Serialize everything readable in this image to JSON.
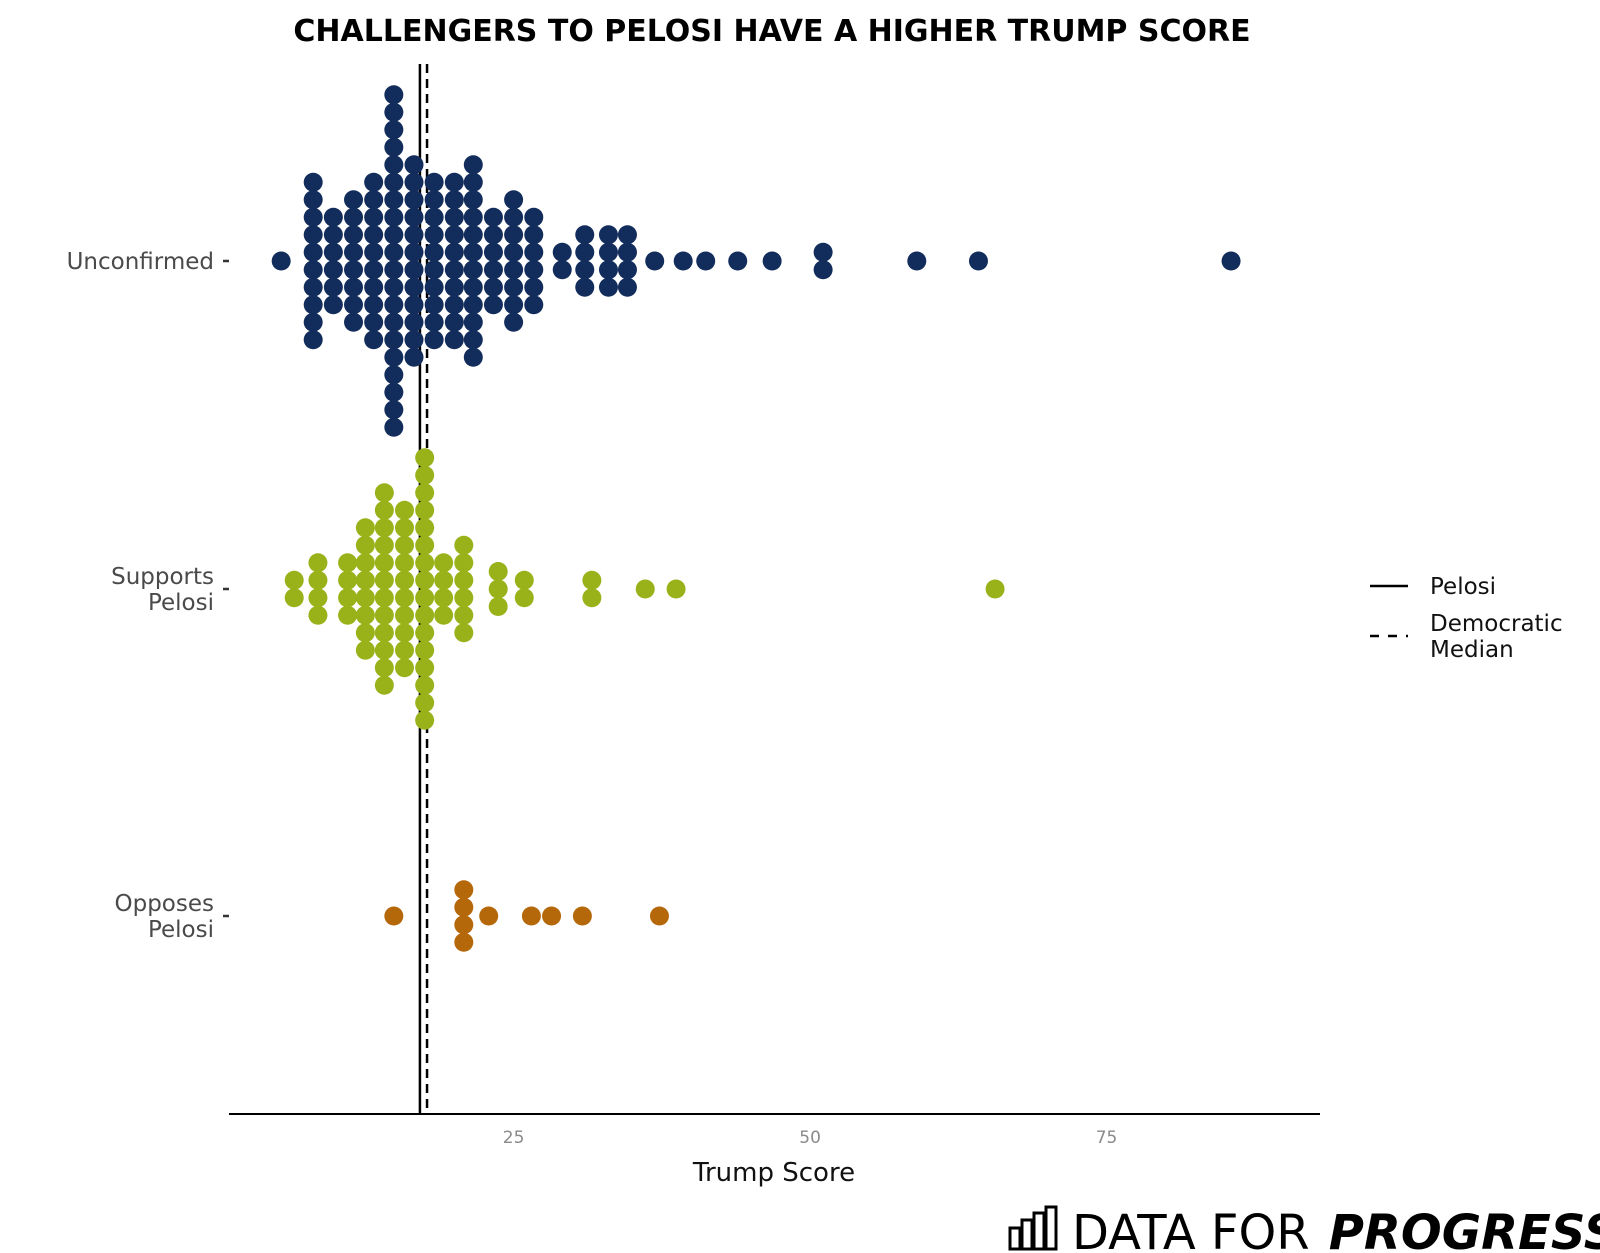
{
  "chart_data": {
    "type": "scatter",
    "title": "CHALLENGERS TO PELOSI HAVE A HIGHER TRUMP SCORE",
    "xlabel": "Trump Score",
    "ylabel": "",
    "xlim": [
      1,
      93
    ],
    "x_ticks": [
      25,
      50,
      75
    ],
    "grid": false,
    "legend_position": "right",
    "categories": [
      {
        "id": "unconfirmed",
        "lines": [
          "Unconfirmed"
        ]
      },
      {
        "id": "supports",
        "lines": [
          "Supports",
          "Pelosi"
        ]
      },
      {
        "id": "opposes",
        "lines": [
          "Opposes",
          "Pelosi"
        ]
      }
    ],
    "series": [
      {
        "category": "unconfirmed",
        "color": "#122c5c",
        "points": [
          [
            5.4,
            1
          ],
          [
            8.1,
            10
          ],
          [
            9.8,
            6
          ],
          [
            11.5,
            8
          ],
          [
            13.2,
            10
          ],
          [
            14.9,
            20
          ],
          [
            16.6,
            12
          ],
          [
            18.3,
            10
          ],
          [
            20.0,
            10
          ],
          [
            21.6,
            12
          ],
          [
            23.3,
            6
          ],
          [
            25.0,
            8
          ],
          [
            26.7,
            6
          ],
          [
            29.1,
            2
          ],
          [
            31.0,
            4
          ],
          [
            33.0,
            4
          ],
          [
            34.6,
            4
          ],
          [
            36.9,
            1
          ],
          [
            39.3,
            1
          ],
          [
            41.2,
            1
          ],
          [
            43.9,
            1
          ],
          [
            46.8,
            1
          ],
          [
            51.1,
            2
          ],
          [
            59.0,
            1
          ],
          [
            64.2,
            1
          ],
          [
            85.5,
            1
          ]
        ]
      },
      {
        "category": "supports",
        "color": "#9ab21a",
        "points": [
          [
            6.5,
            2
          ],
          [
            8.5,
            4
          ],
          [
            11.0,
            4
          ],
          [
            12.5,
            8
          ],
          [
            14.1,
            12
          ],
          [
            15.8,
            10
          ],
          [
            17.5,
            16
          ],
          [
            19.1,
            4
          ],
          [
            20.8,
            6
          ],
          [
            23.7,
            3
          ],
          [
            25.9,
            2
          ],
          [
            31.6,
            2
          ],
          [
            36.1,
            1
          ],
          [
            38.7,
            1
          ],
          [
            65.6,
            1
          ]
        ]
      },
      {
        "category": "opposes",
        "color": "#b5680a",
        "points": [
          [
            14.9,
            1
          ],
          [
            20.8,
            4
          ],
          [
            22.9,
            1
          ],
          [
            26.5,
            1
          ],
          [
            28.2,
            1
          ],
          [
            30.8,
            1
          ],
          [
            37.3,
            1
          ]
        ]
      }
    ],
    "reference_lines": [
      {
        "name": "Pelosi",
        "x": 17.1,
        "style": "solid"
      },
      {
        "name": "Democratic Median",
        "x": 17.7,
        "style": "dashed"
      }
    ],
    "legend": [
      {
        "style": "solid",
        "lines": [
          "Pelosi"
        ]
      },
      {
        "style": "dashed",
        "lines": [
          "Democratic",
          "Median"
        ]
      }
    ]
  },
  "brand": {
    "regular": "DATA FOR",
    "bold": "PROGRESS"
  }
}
